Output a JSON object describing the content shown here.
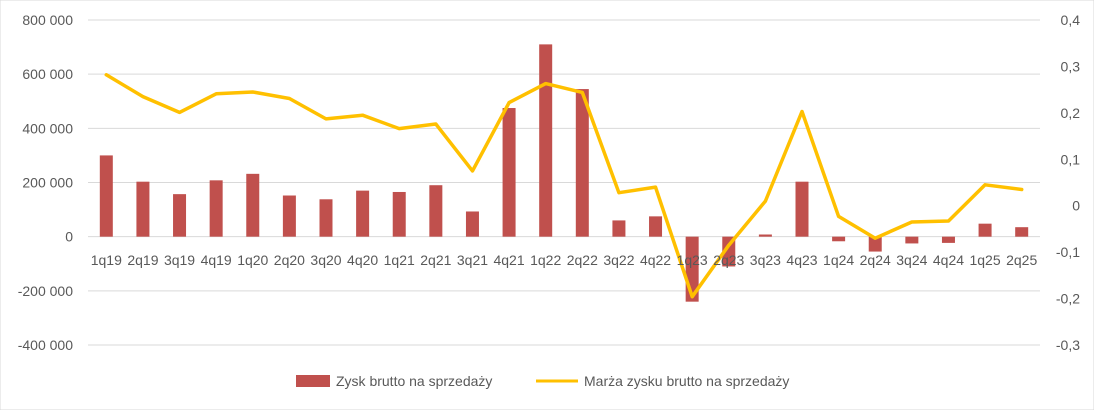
{
  "chart_data": {
    "type": "bar",
    "categories": [
      "1q19",
      "2q19",
      "3q19",
      "4q19",
      "1q20",
      "2q20",
      "3q20",
      "4q20",
      "1q21",
      "2q21",
      "3q21",
      "4q21",
      "1q22",
      "2q22",
      "3q22",
      "4q22",
      "1q23",
      "2q23",
      "3q23",
      "4q23",
      "1q24",
      "2q24",
      "3q24",
      "4q24",
      "1q25",
      "2q25"
    ],
    "series": [
      {
        "name": "Zysk brutto na sprzedaży",
        "type": "bar",
        "axis": "left",
        "color": "#c0504d",
        "values": [
          300000,
          203000,
          157000,
          208000,
          232000,
          152000,
          138000,
          170000,
          165000,
          190000,
          93000,
          475000,
          710000,
          545000,
          60000,
          75000,
          -240000,
          -110000,
          8000,
          203000,
          -17000,
          -55000,
          -25000,
          -23000,
          48000,
          35000
        ]
      },
      {
        "name": "Marża zysku brutto na sprzedaży",
        "type": "line",
        "axis": "right",
        "color": "#ffc000",
        "values": [
          0.282,
          0.235,
          0.201,
          0.241,
          0.245,
          0.231,
          0.187,
          0.195,
          0.166,
          0.176,
          0.075,
          0.222,
          0.263,
          0.244,
          0.028,
          0.04,
          -0.196,
          -0.085,
          0.01,
          0.203,
          -0.023,
          -0.07,
          -0.035,
          -0.033,
          0.045,
          0.035
        ]
      }
    ],
    "y_left": {
      "ylim": [
        -400000,
        800000
      ],
      "ticks": [
        800000,
        600000,
        400000,
        200000,
        0,
        -200000,
        -400000
      ],
      "tick_labels": [
        "800 000",
        "600 000",
        "400 000",
        "200 000",
        "0",
        "-200 000",
        "-400 000"
      ]
    },
    "y_right": {
      "ylim": [
        -0.3,
        0.4
      ],
      "ticks": [
        0.4,
        0.3,
        0.2,
        0.1,
        0,
        -0.1,
        -0.2,
        -0.3
      ],
      "tick_labels": [
        "0,4",
        "0,3",
        "0,2",
        "0,1",
        "0",
        "-0,1",
        "-0,2",
        "-0,3"
      ]
    },
    "grid": true,
    "legend_position": "bottom"
  },
  "legend": {
    "bar_label": "Zysk brutto na sprzedaży",
    "line_label": "Marża zysku brutto na sprzedaży"
  }
}
